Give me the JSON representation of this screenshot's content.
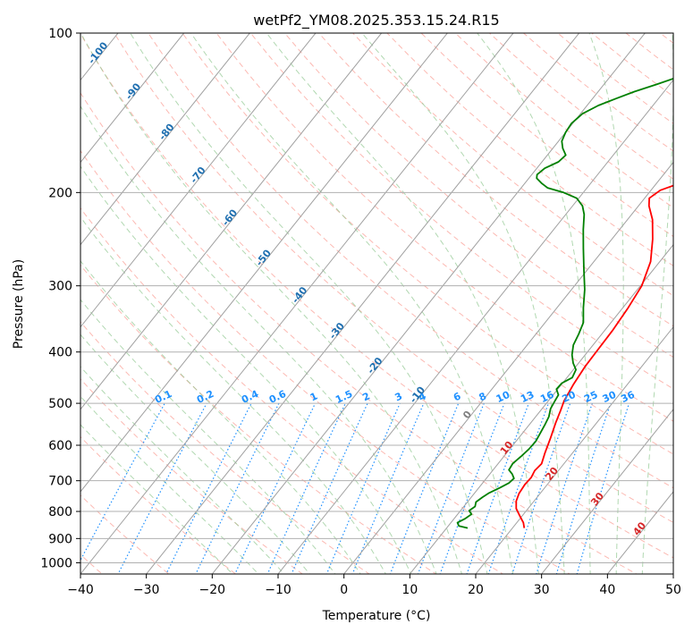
{
  "chart_data": {
    "type": "line",
    "title": "wetPf2_YM08.2025.353.15.24.R15",
    "xlabel": "Temperature (°C)",
    "ylabel": "Pressure (hPa)",
    "xlim": [
      -40,
      50
    ],
    "ylim": [
      1050,
      100
    ],
    "x_ticks": [
      -40,
      -30,
      -20,
      -10,
      0,
      10,
      20,
      30,
      40,
      50
    ],
    "y_ticks": [
      100,
      200,
      300,
      400,
      500,
      600,
      700,
      800,
      900,
      1000
    ],
    "grid": true,
    "colors": {
      "temperature": "#ff0000",
      "dewpoint": "#008000",
      "isotherm": "#a0a0a0",
      "dry_adiabat": "#fa8072",
      "moist_adiabat": "#90c890",
      "mixing_ratio": "#1e90ff",
      "mixing_label": "#1e90ff",
      "isotherm_label": "#1f6fb0",
      "dry_label": "#d62728"
    },
    "series": [
      {
        "name": "Temperature",
        "points": [
          [
            21.8,
            860
          ],
          [
            21.0,
            840
          ],
          [
            19.6,
            815
          ],
          [
            18.2,
            790
          ],
          [
            17.3,
            765
          ],
          [
            16.8,
            740
          ],
          [
            16.6,
            712
          ],
          [
            16.7,
            690
          ],
          [
            16.4,
            670
          ],
          [
            16.6,
            650
          ],
          [
            15.8,
            620
          ],
          [
            14.8,
            580
          ],
          [
            13.8,
            545
          ],
          [
            13.0,
            515
          ],
          [
            12.4,
            495
          ],
          [
            11.8,
            460
          ],
          [
            11.4,
            425
          ],
          [
            11.3,
            395
          ],
          [
            11.2,
            365
          ],
          [
            10.8,
            330
          ],
          [
            10.2,
            300
          ],
          [
            8.6,
            270
          ],
          [
            6.2,
            245
          ],
          [
            3.8,
            225
          ],
          [
            1.6,
            212
          ],
          [
            0.7,
            205
          ],
          [
            1.4,
            198
          ],
          [
            4.3,
            190
          ],
          [
            6.9,
            182
          ],
          [
            8.8,
            173
          ],
          [
            10.4,
            165
          ],
          [
            11.7,
            157
          ],
          [
            12.6,
            149
          ],
          [
            13.2,
            140
          ],
          [
            13.4,
            130
          ],
          [
            13.4,
            122
          ],
          [
            13.1,
            115
          ],
          [
            12.4,
            108
          ],
          [
            11.7,
            102
          ],
          [
            11.6,
            100
          ]
        ]
      },
      {
        "name": "Dewpoint",
        "points": [
          [
            13.2,
            860
          ],
          [
            11.6,
            852
          ],
          [
            11.0,
            840
          ],
          [
            11.7,
            825
          ],
          [
            12.1,
            810
          ],
          [
            11.3,
            797
          ],
          [
            11.7,
            783
          ],
          [
            11.3,
            768
          ],
          [
            11.7,
            752
          ],
          [
            12.2,
            738
          ],
          [
            13.2,
            722
          ],
          [
            14.0,
            707
          ],
          [
            14.2,
            693
          ],
          [
            13.4,
            680
          ],
          [
            12.4,
            668
          ],
          [
            12.2,
            650
          ],
          [
            12.6,
            630
          ],
          [
            12.9,
            610
          ],
          [
            13.0,
            590
          ],
          [
            12.7,
            570
          ],
          [
            12.4,
            550
          ],
          [
            12.0,
            530
          ],
          [
            11.3,
            512
          ],
          [
            11.0,
            495
          ],
          [
            10.8,
            482
          ],
          [
            9.8,
            470
          ],
          [
            9.9,
            458
          ],
          [
            10.8,
            447
          ],
          [
            10.4,
            432
          ],
          [
            9.2,
            420
          ],
          [
            8.0,
            405
          ],
          [
            7.0,
            388
          ],
          [
            6.5,
            370
          ],
          [
            5.8,
            352
          ],
          [
            4.0,
            330
          ],
          [
            2.0,
            305
          ],
          [
            -0.5,
            280
          ],
          [
            -3.2,
            255
          ],
          [
            -5.5,
            235
          ],
          [
            -7.2,
            220
          ],
          [
            -8.5,
            212
          ],
          [
            -10.3,
            205
          ],
          [
            -13.0,
            200
          ],
          [
            -16.0,
            196
          ],
          [
            -17.5,
            192
          ],
          [
            -18.8,
            188
          ],
          [
            -19.2,
            185
          ],
          [
            -18.8,
            180
          ],
          [
            -17.5,
            175
          ],
          [
            -17.2,
            170
          ],
          [
            -18.5,
            165
          ],
          [
            -19.5,
            160
          ],
          [
            -20.0,
            154
          ],
          [
            -20.2,
            148
          ],
          [
            -19.7,
            142
          ],
          [
            -18.3,
            137
          ],
          [
            -16.5,
            133
          ],
          [
            -14.5,
            129
          ],
          [
            -12.0,
            125
          ],
          [
            -9.6,
            121
          ],
          [
            -6.8,
            117
          ],
          [
            -4.5,
            113
          ],
          [
            -2.6,
            110
          ],
          [
            -1.2,
            106
          ],
          [
            -0.4,
            102
          ],
          [
            -0.1,
            100
          ]
        ]
      }
    ],
    "isotherm_labels": [
      {
        "text": "-100",
        "T": -100,
        "p": 110
      },
      {
        "text": "-90",
        "T": -90,
        "p": 130
      },
      {
        "text": "-80",
        "T": -80,
        "p": 155
      },
      {
        "text": "-70",
        "T": -70,
        "p": 187
      },
      {
        "text": "-60",
        "T": -60,
        "p": 225
      },
      {
        "text": "-50",
        "T": -50,
        "p": 268
      },
      {
        "text": "-40",
        "T": -40,
        "p": 315
      },
      {
        "text": "-30",
        "T": -30,
        "p": 368
      },
      {
        "text": "-20",
        "T": -20,
        "p": 428
      },
      {
        "text": "-10",
        "T": -10,
        "p": 486
      },
      {
        "text": "0",
        "T": 0,
        "p": 530
      },
      {
        "text": "10",
        "T": 10,
        "p": 612
      },
      {
        "text": "20",
        "T": 20,
        "p": 685
      },
      {
        "text": "30",
        "T": 30,
        "p": 765
      },
      {
        "text": "40",
        "T": 40,
        "p": 870
      }
    ],
    "mixing_ratios": [
      0.1,
      0.2,
      0.4,
      0.6,
      1,
      1.5,
      2,
      3,
      4,
      6,
      8,
      10,
      13,
      16,
      20,
      25,
      30,
      36
    ],
    "mixing_ratio_label_pressure": 500
  }
}
